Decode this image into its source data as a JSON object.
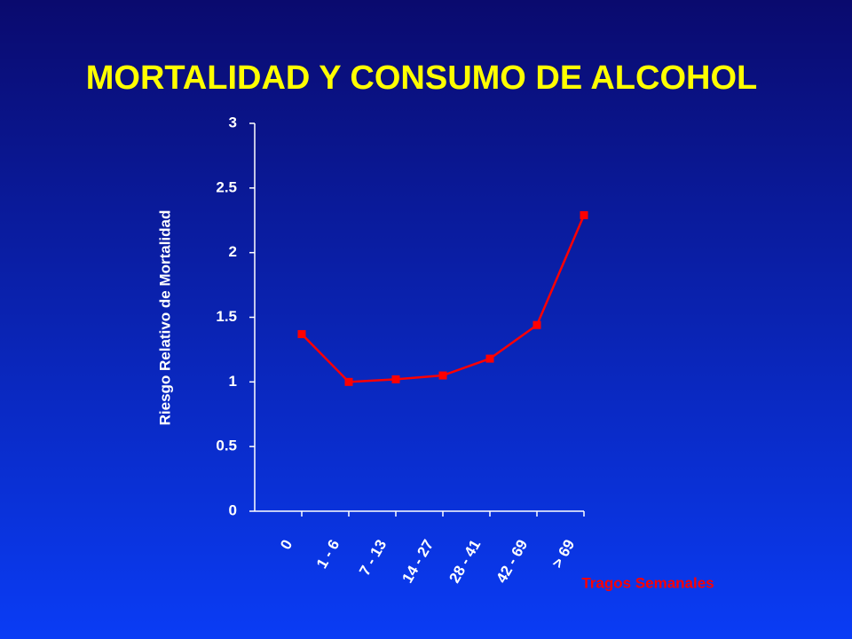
{
  "chart_data": {
    "type": "line",
    "title": "MORTALIDAD Y CONSUMO DE ALCOHOL",
    "x_label": "Tragos Semanales",
    "y_label": "Riesgo Relativo de Mortalidad",
    "categories": [
      "0",
      "1 - 6",
      "7 - 13",
      "14 - 27",
      "28 - 41",
      "42 - 69",
      "> 69"
    ],
    "values": [
      1.37,
      1.0,
      1.02,
      1.05,
      1.18,
      1.44,
      2.29
    ],
    "color": "#ff0000",
    "ylim": [
      0,
      3
    ],
    "yticks": [
      0,
      0.5,
      1,
      1.5,
      2,
      2.5,
      3
    ]
  }
}
